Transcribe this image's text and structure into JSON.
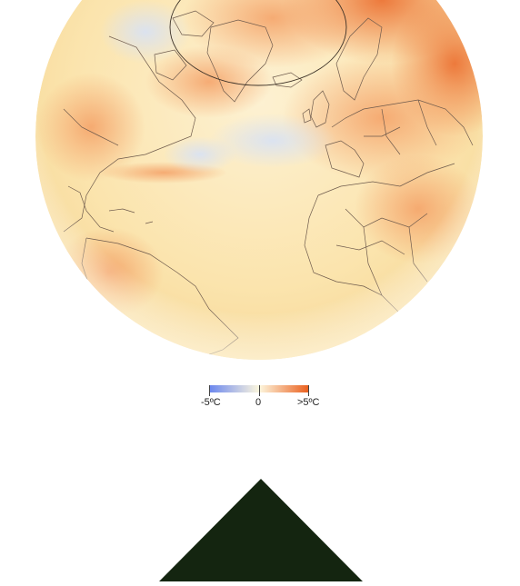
{
  "map": {
    "projection": "orthographic-globe",
    "shows_arctic_circle": true,
    "land_outlines": true
  },
  "legend": {
    "min_label": "-5ºC",
    "mid_label": "0",
    "max_label": ">5ºC",
    "colors": {
      "cold": "#6a86ee",
      "neutral": "#fdf7de",
      "warm": "#ea5e1c"
    }
  },
  "colors": {
    "globe_base": "#fce8b8",
    "warm_anomaly": "#f4a066",
    "strong_warm_anomaly": "#ec7436",
    "cool_anomaly": "#dfe4f0",
    "border_lines": "#6e5a4c",
    "triangle": "#142510"
  },
  "decoration": {
    "shape": "triangle-up"
  }
}
